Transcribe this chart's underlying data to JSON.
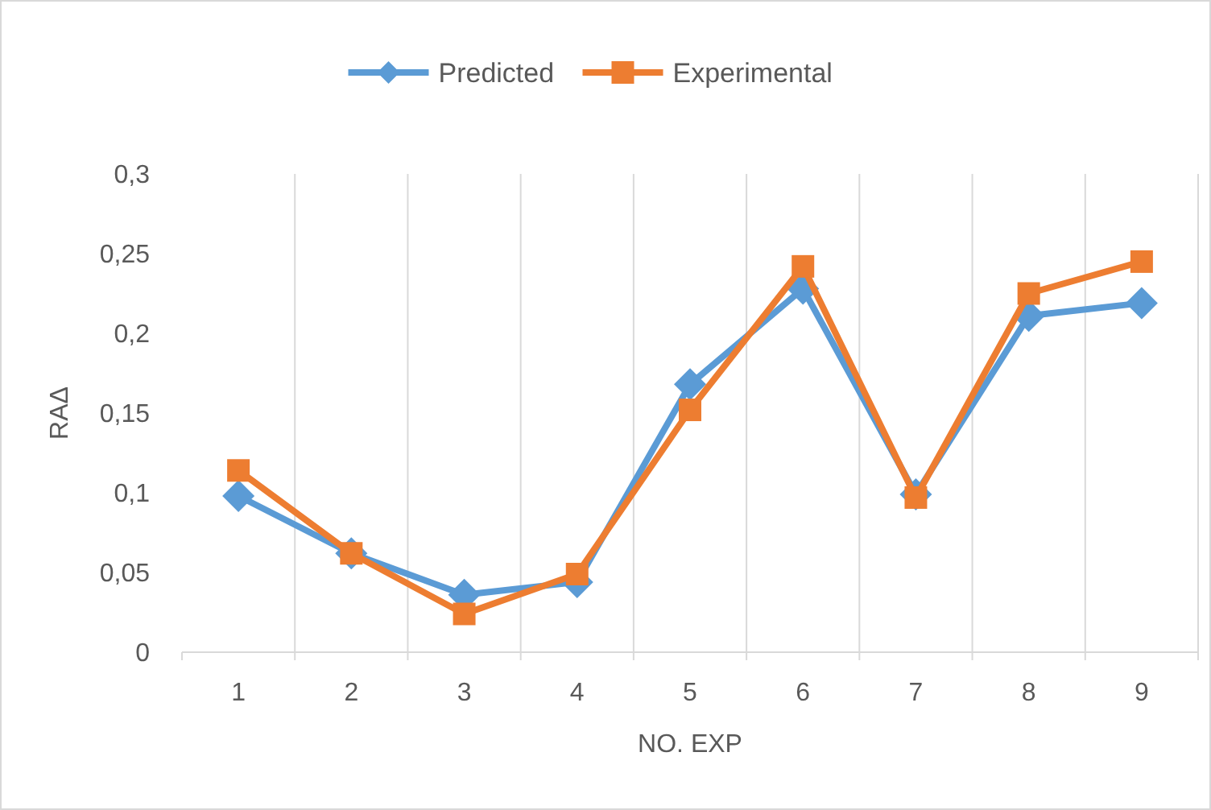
{
  "chart_data": {
    "type": "line",
    "xlabel": "NO. EXP",
    "ylabel": "RAΔ",
    "categories": [
      "1",
      "2",
      "3",
      "4",
      "5",
      "6",
      "7",
      "8",
      "9"
    ],
    "series": [
      {
        "name": "Predicted",
        "color": "#5b9bd5",
        "marker": "diamond",
        "values": [
          0.098,
          0.062,
          0.036,
          0.044,
          0.168,
          0.228,
          0.099,
          0.211,
          0.219
        ]
      },
      {
        "name": "Experimental",
        "color": "#ed7d31",
        "marker": "square",
        "values": [
          0.114,
          0.062,
          0.024,
          0.049,
          0.152,
          0.242,
          0.097,
          0.225,
          0.245
        ]
      }
    ],
    "ylim": [
      0,
      0.3
    ],
    "yticks": [
      {
        "value": 0,
        "label": "0"
      },
      {
        "value": 0.05,
        "label": "0,05"
      },
      {
        "value": 0.1,
        "label": "0,1"
      },
      {
        "value": 0.15,
        "label": "0,15"
      },
      {
        "value": 0.2,
        "label": "0,2"
      },
      {
        "value": 0.25,
        "label": "0,25"
      },
      {
        "value": 0.3,
        "label": "0,3"
      }
    ],
    "grid": "x",
    "legend": "top",
    "line_style": "solid"
  }
}
